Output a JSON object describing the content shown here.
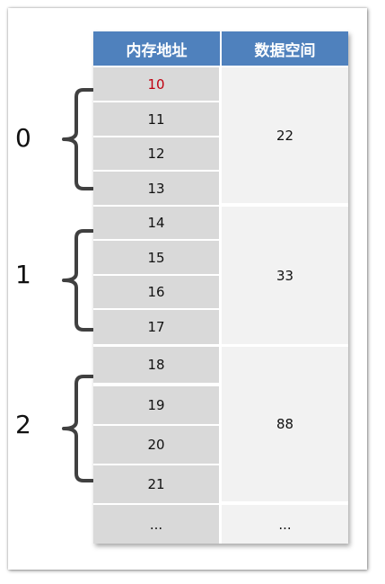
{
  "table": {
    "headers": [
      "内存地址",
      "数据空间"
    ],
    "addresses": [
      "10",
      "11",
      "12",
      "13",
      "14",
      "15",
      "16",
      "17",
      "18",
      "19",
      "20",
      "21",
      "..."
    ],
    "data_values": [
      "22",
      "33",
      "88",
      "..."
    ]
  },
  "groups": [
    "0",
    "1",
    "2"
  ],
  "colors": {
    "header_bg": "#4f81bd",
    "address_bg": "#d9d9d9",
    "data_bg": "#f2f2f2",
    "highlight_text": "#c0000f",
    "brace": "#404040"
  }
}
